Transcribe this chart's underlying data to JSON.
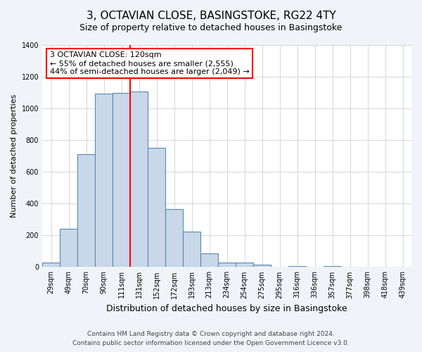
{
  "title": "3, OCTAVIAN CLOSE, BASINGSTOKE, RG22 4TY",
  "subtitle": "Size of property relative to detached houses in Basingstoke",
  "xlabel": "Distribution of detached houses by size in Basingstoke",
  "ylabel": "Number of detached properties",
  "bar_labels": [
    "29sqm",
    "49sqm",
    "70sqm",
    "90sqm",
    "111sqm",
    "131sqm",
    "152sqm",
    "172sqm",
    "193sqm",
    "213sqm",
    "234sqm",
    "254sqm",
    "275sqm",
    "295sqm",
    "316sqm",
    "336sqm",
    "357sqm",
    "377sqm",
    "398sqm",
    "418sqm",
    "439sqm"
  ],
  "bar_values": [
    30,
    240,
    710,
    1095,
    1100,
    1105,
    750,
    365,
    225,
    85,
    30,
    30,
    15,
    0,
    5,
    0,
    5,
    0,
    0,
    0,
    0
  ],
  "bar_color": "#c8d8e8",
  "bar_edge_color": "#5a88b0",
  "vline_color": "red",
  "vline_x": 4.5,
  "annotation_title": "3 OCTAVIAN CLOSE: 120sqm",
  "annotation_line1": "← 55% of detached houses are smaller (2,555)",
  "annotation_line2": "44% of semi-detached houses are larger (2,049) →",
  "annotation_box_color": "white",
  "annotation_box_edge_color": "red",
  "ylim": [
    0,
    1400
  ],
  "yticks": [
    0,
    200,
    400,
    600,
    800,
    1000,
    1200,
    1400
  ],
  "footer1": "Contains HM Land Registry data © Crown copyright and database right 2024.",
  "footer2": "Contains public sector information licensed under the Open Government Licence v3.0.",
  "background_color": "#f0f4f8",
  "plot_background_color": "white",
  "grid_color": "#d0d0d0",
  "title_fontsize": 11,
  "subtitle_fontsize": 9,
  "ylabel_fontsize": 8,
  "xlabel_fontsize": 9,
  "tick_fontsize": 7,
  "annotation_fontsize": 8,
  "footer_fontsize": 6.5
}
